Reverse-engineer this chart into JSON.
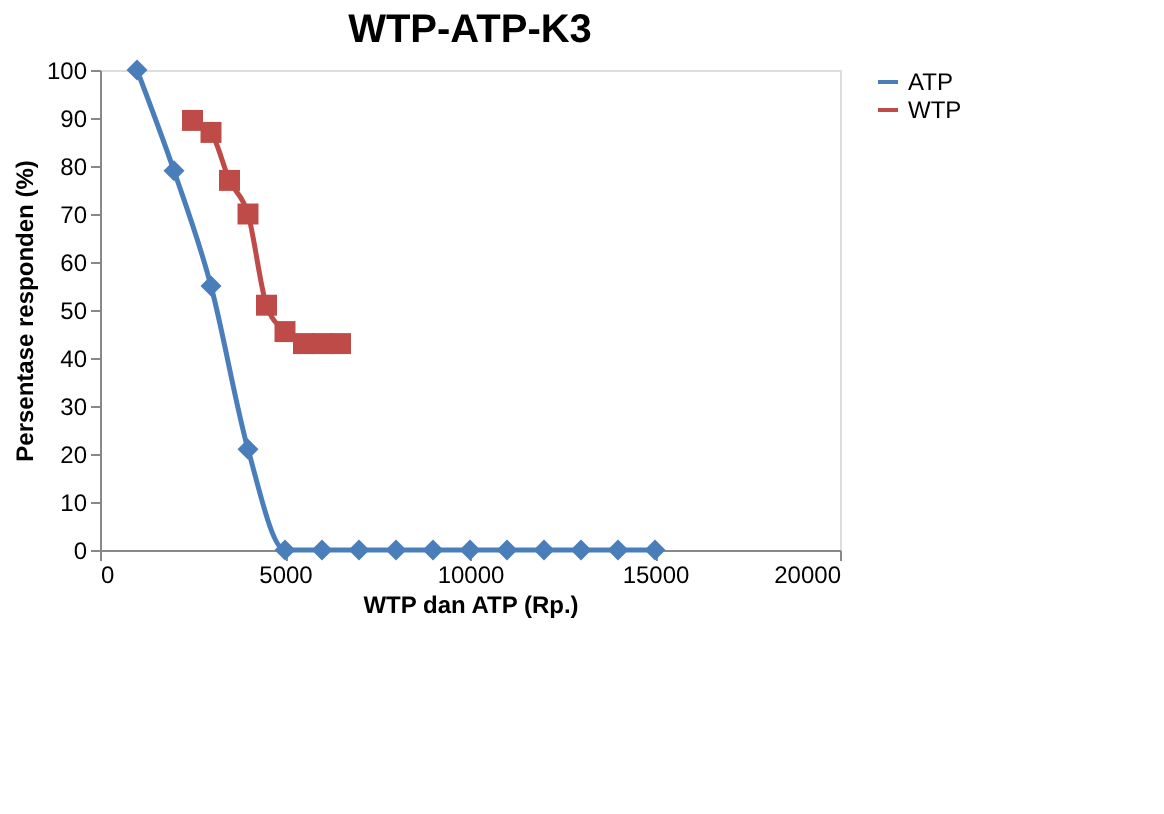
{
  "chart_data": {
    "type": "line",
    "title": "WTP-ATP-K3",
    "xlabel": "WTP dan ATP (Rp.)",
    "ylabel": "Persentase responden (%)",
    "xlim": [
      0,
      20000
    ],
    "xticks": [
      0,
      5000,
      10000,
      15000,
      20000
    ],
    "ylim": [
      0,
      100
    ],
    "yticks": [
      0,
      10,
      20,
      30,
      40,
      50,
      60,
      70,
      80,
      90,
      100
    ],
    "grid": false,
    "legend": "right",
    "series": [
      {
        "name": "ATP",
        "color": "#4a7ebb",
        "marker": "diamond",
        "x": [
          1000,
          2000,
          3000,
          4000,
          5000,
          6000,
          7000,
          8000,
          9000,
          10000,
          11000,
          12000,
          13000,
          14000,
          15000
        ],
        "values": [
          100,
          79,
          55,
          21,
          0,
          0,
          0,
          0,
          0,
          0,
          0,
          0,
          0,
          0,
          0
        ]
      },
      {
        "name": "WTP",
        "color": "#be4b48",
        "marker": "square",
        "x": [
          2500,
          3000,
          3500,
          4000,
          4500,
          5000,
          5500,
          6000,
          6500
        ],
        "values": [
          89.5,
          87,
          77,
          70,
          51,
          45.5,
          43,
          43,
          43
        ]
      }
    ]
  }
}
